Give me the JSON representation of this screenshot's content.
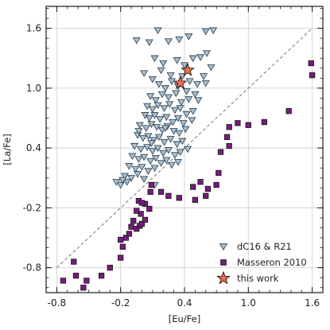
{
  "chart_data": {
    "type": "scatter",
    "xlabel": "[Eu/Fe]",
    "ylabel": "[La/Fe]",
    "xlim": [
      -0.9,
      1.7
    ],
    "ylim": [
      -1.05,
      1.82
    ],
    "xticks": [
      -0.8,
      -0.2,
      0.4,
      1.0,
      1.6
    ],
    "yticks": [
      -0.8,
      -0.2,
      0.4,
      1.0,
      1.6
    ],
    "xtick_labels": [
      "-0.8",
      "-0.2",
      "0.4",
      "1.0",
      "1.6"
    ],
    "ytick_labels": [
      "-0.8",
      "-0.2",
      "0.4",
      "1.0",
      "1.6"
    ],
    "grid": true,
    "legend_position": "bottom-right",
    "reference_line": {
      "style": "dashed",
      "color": "#777777",
      "points": [
        [
          -0.8,
          -0.8
        ],
        [
          1.6,
          1.6
        ]
      ]
    },
    "series": [
      {
        "name": "dC16 & R21",
        "marker": "triangle-down",
        "color": "#a8bfcf",
        "edge": "#3a4a5a",
        "points": [
          [
            -0.05,
            1.48
          ],
          [
            0.07,
            1.46
          ],
          [
            0.15,
            1.58
          ],
          [
            0.25,
            1.47
          ],
          [
            0.35,
            1.49
          ],
          [
            0.44,
            1.52
          ],
          [
            0.6,
            1.57
          ],
          [
            0.67,
            1.58
          ],
          [
            0.12,
            1.3
          ],
          [
            0.2,
            1.25
          ],
          [
            0.33,
            1.28
          ],
          [
            0.4,
            1.23
          ],
          [
            0.48,
            1.3
          ],
          [
            0.55,
            1.31
          ],
          [
            0.61,
            1.35
          ],
          [
            0.65,
            1.21
          ],
          [
            0.02,
            1.15
          ],
          [
            0.1,
            1.09
          ],
          [
            0.18,
            1.18
          ],
          [
            0.27,
            1.13
          ],
          [
            0.38,
            1.12
          ],
          [
            0.45,
            1.07
          ],
          [
            0.52,
            1.04
          ],
          [
            0.58,
            1.12
          ],
          [
            0.16,
            1.04
          ],
          [
            0.22,
            1.0
          ],
          [
            0.28,
            1.07
          ],
          [
            0.34,
            1.02
          ],
          [
            0.42,
            0.97
          ],
          [
            0.5,
            0.94
          ],
          [
            0.6,
            1.05
          ],
          [
            0.08,
            0.92
          ],
          [
            0.13,
            0.88
          ],
          [
            0.19,
            0.94
          ],
          [
            0.25,
            0.91
          ],
          [
            0.32,
            0.95
          ],
          [
            0.37,
            0.86
          ],
          [
            0.44,
            0.89
          ],
          [
            0.53,
            0.88
          ],
          [
            0.05,
            0.82
          ],
          [
            0.1,
            0.79
          ],
          [
            0.15,
            0.83
          ],
          [
            0.21,
            0.8
          ],
          [
            0.26,
            0.84
          ],
          [
            0.31,
            0.78
          ],
          [
            0.36,
            0.8
          ],
          [
            0.42,
            0.74
          ],
          [
            0.48,
            0.77
          ],
          [
            0.03,
            0.73
          ],
          [
            0.07,
            0.7
          ],
          [
            0.12,
            0.73
          ],
          [
            0.17,
            0.69
          ],
          [
            0.23,
            0.71
          ],
          [
            0.29,
            0.66
          ],
          [
            0.34,
            0.7
          ],
          [
            0.39,
            0.65
          ],
          [
            -0.02,
            0.63
          ],
          [
            0.04,
            0.6
          ],
          [
            0.09,
            0.64
          ],
          [
            0.14,
            0.61
          ],
          [
            0.19,
            0.58
          ],
          [
            0.24,
            0.62
          ],
          [
            0.3,
            0.57
          ],
          [
            0.35,
            0.55
          ],
          [
            0.41,
            0.59
          ],
          [
            -0.04,
            0.53
          ],
          [
            0.01,
            0.5
          ],
          [
            0.06,
            0.52
          ],
          [
            0.11,
            0.48
          ],
          [
            0.16,
            0.51
          ],
          [
            0.21,
            0.46
          ],
          [
            0.27,
            0.49
          ],
          [
            0.33,
            0.44
          ],
          [
            0.38,
            0.47
          ],
          [
            -0.07,
            0.42
          ],
          [
            -0.01,
            0.39
          ],
          [
            0.05,
            0.41
          ],
          [
            0.1,
            0.37
          ],
          [
            0.15,
            0.4
          ],
          [
            0.2,
            0.35
          ],
          [
            0.25,
            0.38
          ],
          [
            0.31,
            0.33
          ],
          [
            0.36,
            0.36
          ],
          [
            0.43,
            0.39
          ],
          [
            -0.09,
            0.32
          ],
          [
            -0.03,
            0.29
          ],
          [
            0.02,
            0.31
          ],
          [
            0.08,
            0.27
          ],
          [
            0.13,
            0.3
          ],
          [
            0.18,
            0.25
          ],
          [
            0.23,
            0.28
          ],
          [
            0.28,
            0.23
          ],
          [
            0.34,
            0.26
          ],
          [
            -0.12,
            0.22
          ],
          [
            -0.06,
            0.19
          ],
          [
            0.0,
            0.21
          ],
          [
            0.06,
            0.17
          ],
          [
            0.12,
            0.2
          ],
          [
            -0.16,
            0.12
          ],
          [
            -0.1,
            0.1
          ],
          [
            -0.04,
            0.14
          ],
          [
            -0.2,
            0.03
          ],
          [
            -0.14,
            0.06
          ],
          [
            -0.24,
            0.06
          ],
          [
            -0.18,
            0.08
          ],
          [
            0.02,
            0.09
          ],
          [
            -0.03,
            0.57
          ],
          [
            0.09,
            0.45
          ],
          [
            0.22,
            0.6
          ],
          [
            0.47,
            0.68
          ],
          [
            0.12,
            0.03
          ]
        ]
      },
      {
        "name": "Masseron 2010",
        "marker": "square",
        "color": "#7a1a82",
        "edge": "#1a1a1a",
        "points": [
          [
            -0.74,
            -0.93
          ],
          [
            -0.62,
            -0.88
          ],
          [
            -0.55,
            -1.0
          ],
          [
            -0.52,
            -0.93
          ],
          [
            -0.38,
            -0.88
          ],
          [
            -0.3,
            -0.8
          ],
          [
            -0.64,
            -0.74
          ],
          [
            -0.2,
            -0.7
          ],
          [
            -0.18,
            -0.59
          ],
          [
            -0.2,
            -0.52
          ],
          [
            -0.15,
            -0.5
          ],
          [
            -0.12,
            -0.46
          ],
          [
            -0.1,
            -0.39
          ],
          [
            -0.05,
            -0.41
          ],
          [
            -0.02,
            -0.38
          ],
          [
            -0.08,
            -0.33
          ],
          [
            0.0,
            -0.36
          ],
          [
            0.03,
            -0.32
          ],
          [
            -0.01,
            -0.26
          ],
          [
            -0.05,
            -0.23
          ],
          [
            -0.03,
            -0.13
          ],
          [
            0.03,
            -0.16
          ],
          [
            0.07,
            -0.21
          ],
          [
            0.0,
            -0.15
          ],
          [
            0.08,
            -0.04
          ],
          [
            0.09,
            0.03
          ],
          [
            0.18,
            -0.04
          ],
          [
            0.25,
            -0.08
          ],
          [
            0.35,
            -0.1
          ],
          [
            0.5,
            -0.12
          ],
          [
            0.6,
            -0.08
          ],
          [
            0.55,
            0.06
          ],
          [
            0.48,
            0.01
          ],
          [
            0.62,
            -0.01
          ],
          [
            0.72,
            0.15
          ],
          [
            0.7,
            0.03
          ],
          [
            0.74,
            0.36
          ],
          [
            0.82,
            0.42
          ],
          [
            0.8,
            0.51
          ],
          [
            0.9,
            0.65
          ],
          [
            0.82,
            0.61
          ],
          [
            1.0,
            0.63
          ],
          [
            1.15,
            0.66
          ],
          [
            1.38,
            0.77
          ],
          [
            1.59,
            1.25
          ],
          [
            1.6,
            1.13
          ]
        ]
      },
      {
        "name": "this work",
        "marker": "star",
        "color": "#f26b4c",
        "edge": "#1a1a1a",
        "points": [
          [
            0.36,
            1.05
          ],
          [
            0.43,
            1.18
          ]
        ]
      }
    ]
  }
}
